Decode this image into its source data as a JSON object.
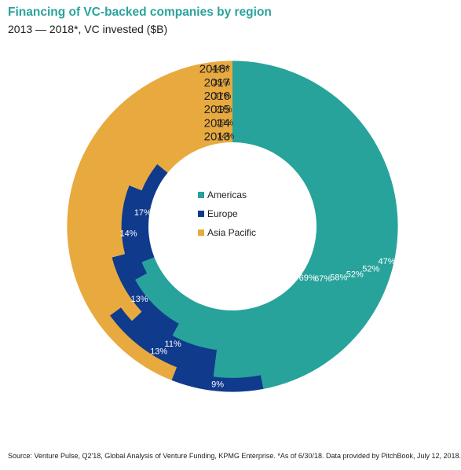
{
  "header": {
    "title": "Financing of VC-backed companies by region",
    "subtitle": "2013 — 2018*, VC invested ($B)"
  },
  "footer": {
    "source": "Source: Venture Pulse, Q2'18, Global Analysis of Venture Funding, KPMG Enterprise. *As of 6/30/18. Data provided by PitchBook, July 12, 2018."
  },
  "colors": {
    "title": "#2aa39c",
    "Americas": "#27a39b",
    "Europe": "#103a8c",
    "Asia Pacific": "#e8aa3f"
  },
  "chart_data": {
    "type": "radial stacked bar",
    "title": "Financing of VC-backed companies by region",
    "subtitle": "2013 — 2018*, VC invested ($B)",
    "categories": [
      "2013",
      "2014",
      "2015",
      "2016",
      "2017",
      "2018*"
    ],
    "series": [
      {
        "name": "Americas",
        "values": [
          69,
          67,
          58,
          52,
          52,
          47
        ],
        "labels": [
          "69%",
          "67%",
          "58%",
          "52%",
          "52%",
          "47%"
        ]
      },
      {
        "name": "Europe",
        "values": [
          17,
          14,
          13,
          11,
          13,
          9
        ],
        "labels": [
          "17%",
          "14%",
          "13%",
          "11%",
          "13%",
          "9%"
        ]
      },
      {
        "name": "Asia Pacific",
        "values": [
          14,
          19,
          29,
          37,
          35,
          44
        ],
        "labels": [
          "14%",
          "19%",
          "29%",
          "37%",
          "35%",
          "44%"
        ]
      }
    ],
    "unit": "%",
    "legend": {
      "position": "center",
      "entries": [
        "Americas",
        "Europe",
        "Asia Pacific"
      ]
    }
  }
}
